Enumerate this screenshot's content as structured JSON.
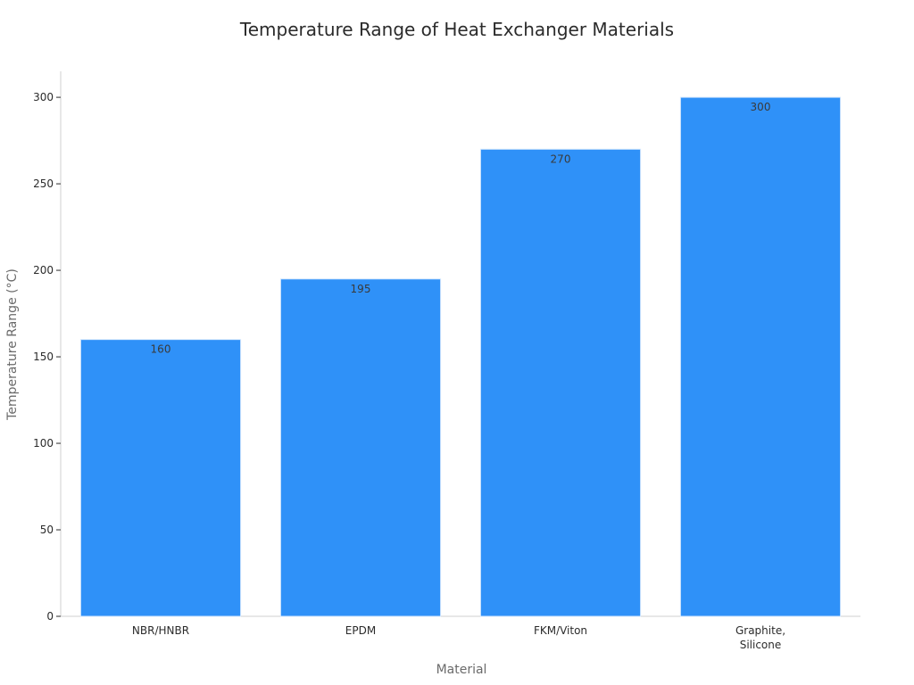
{
  "chart_data": {
    "type": "bar",
    "title": "Temperature Range of Heat Exchanger Materials",
    "xlabel": "Material",
    "ylabel": "Temperature Range (°C)",
    "categories": [
      [
        "NBR/HNBR"
      ],
      [
        "EPDM"
      ],
      [
        "FKM/Viton"
      ],
      [
        "Graphite,",
        "Silicone"
      ]
    ],
    "values": [
      160,
      195,
      270,
      300
    ],
    "data_labels": [
      "160",
      "195",
      "270",
      "300"
    ],
    "ylim": [
      0,
      315
    ],
    "yticks": [
      0,
      50,
      100,
      150,
      200,
      250,
      300
    ],
    "grid": false,
    "legend": "none",
    "bar_color": "#2f91f8",
    "bar_edge_color": "#d6e8fd"
  }
}
